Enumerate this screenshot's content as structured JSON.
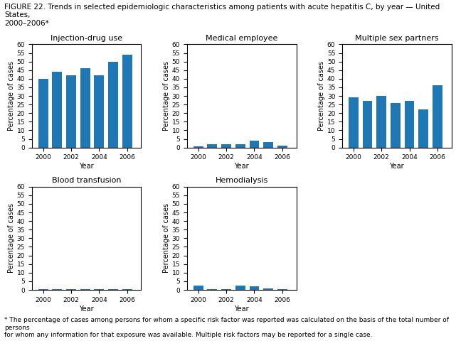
{
  "title": "FIGURE 22. Trends in selected epidemiologic characteristics among patients with acute hepatitis C, by year — United States,\n2000–2006*",
  "annotations": [
    "* The percentage of cases among persons for whom a specific risk factor was reported was calculated on the basis of the total number of persons\nfor whom any information for that exposure was available. Multiple risk factors may be reported for a single case."
  ],
  "chart_data": [
    {
      "type": "bar",
      "title": "Injection-drug use",
      "x": [
        2000,
        2001,
        2002,
        2003,
        2004,
        2005,
        2006
      ],
      "values": [
        40,
        44,
        42,
        46,
        42,
        50,
        54
      ],
      "xlim": [
        1999.2,
        2007.0
      ],
      "xticks": [
        2000,
        2002,
        2004,
        2006
      ],
      "ylim": [
        0,
        60
      ],
      "yticks": [
        0,
        5,
        10,
        15,
        20,
        25,
        30,
        35,
        40,
        45,
        50,
        55,
        60
      ],
      "xlabel": "Year",
      "ylabel": "Percentage of cases"
    },
    {
      "type": "bar",
      "title": "Medical employee",
      "x": [
        2000,
        2001,
        2002,
        2003,
        2004,
        2005,
        2006
      ],
      "values": [
        0.5,
        2,
        2,
        2,
        4,
        3,
        1
      ],
      "xlim": [
        1999.2,
        2007.0
      ],
      "xticks": [
        2000,
        2002,
        2004,
        2006
      ],
      "ylim": [
        0,
        60
      ],
      "yticks": [
        0,
        5,
        10,
        15,
        20,
        25,
        30,
        35,
        40,
        45,
        50,
        55,
        60
      ],
      "xlabel": "Year",
      "ylabel": "Percentage of cases"
    },
    {
      "type": "bar",
      "title": "Multiple sex partners",
      "x": [
        2000,
        2001,
        2002,
        2003,
        2004,
        2005,
        2006
      ],
      "values": [
        29,
        27,
        30,
        26,
        27,
        22,
        36
      ],
      "xlim": [
        1999.2,
        2007.0
      ],
      "xticks": [
        2000,
        2002,
        2004,
        2006
      ],
      "ylim": [
        0,
        60
      ],
      "yticks": [
        0,
        5,
        10,
        15,
        20,
        25,
        30,
        35,
        40,
        45,
        50,
        55,
        60
      ],
      "xlabel": "Year",
      "ylabel": "Percentage of cases"
    },
    {
      "type": "bar",
      "title": "Blood transfusion",
      "x": [
        2000,
        2001,
        2002,
        2003,
        2004,
        2005,
        2006
      ],
      "values": [
        0.5,
        0.5,
        0.5,
        0.5,
        0.5,
        0.5,
        0.5
      ],
      "xlim": [
        1999.2,
        2007.0
      ],
      "xticks": [
        2000,
        2002,
        2004,
        2006
      ],
      "ylim": [
        0,
        60
      ],
      "yticks": [
        0,
        5,
        10,
        15,
        20,
        25,
        30,
        35,
        40,
        45,
        50,
        55,
        60
      ],
      "xlabel": "Year",
      "ylabel": "Percentage of cases"
    },
    {
      "type": "bar",
      "title": "Hemodialysis",
      "x": [
        2000,
        2001,
        2002,
        2003,
        2004,
        2005,
        2006
      ],
      "values": [
        2.5,
        0.3,
        0.5,
        2.5,
        2.0,
        1.0,
        0.3
      ],
      "xlim": [
        1999.2,
        2007.0
      ],
      "xticks": [
        2000,
        2002,
        2004,
        2006
      ],
      "ylim": [
        0,
        60
      ],
      "yticks": [
        0,
        5,
        10,
        15,
        20,
        25,
        30,
        35,
        40,
        45,
        50,
        55,
        60
      ],
      "xlabel": "Year",
      "ylabel": "Percentage of cases"
    }
  ]
}
